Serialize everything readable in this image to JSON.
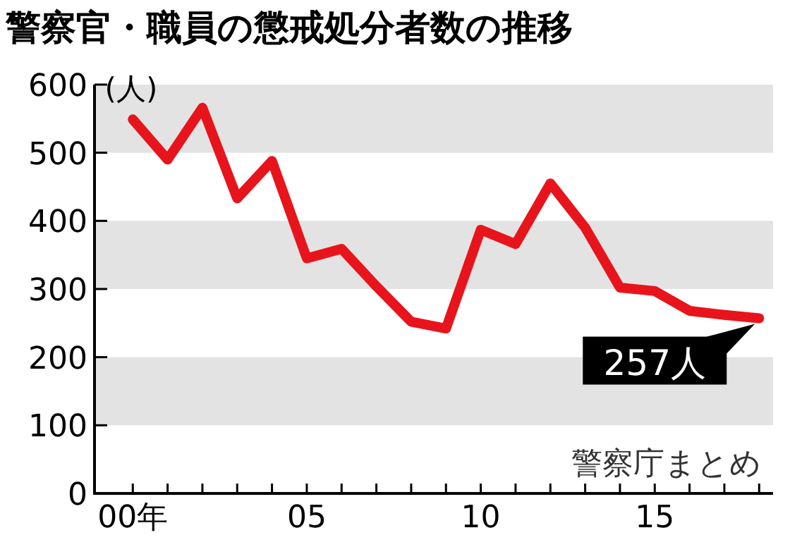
{
  "chart_data": {
    "type": "line",
    "title": "警察官・職員の懲戒処分者数の推移",
    "ylabel": "(人)",
    "x": [
      0,
      1,
      2,
      3,
      4,
      5,
      6,
      7,
      8,
      9,
      10,
      11,
      12,
      13,
      14,
      15,
      16,
      17,
      18
    ],
    "series": [
      {
        "color": "#e8141c",
        "values": [
          549,
          490,
          566,
          433,
          488,
          345,
          359,
          304,
          252,
          242,
          387,
          366,
          455,
          390,
          302,
          297,
          268,
          262,
          257
        ]
      }
    ],
    "xlim": [
      -1.1,
      18.4
    ],
    "xticks": [
      {
        "value": 0,
        "label": "00年"
      },
      {
        "value": 1,
        "label": null
      },
      {
        "value": 2,
        "label": null
      },
      {
        "value": 3,
        "label": null
      },
      {
        "value": 4,
        "label": null
      },
      {
        "value": 5,
        "label": "05"
      },
      {
        "value": 6,
        "label": null
      },
      {
        "value": 7,
        "label": null
      },
      {
        "value": 8,
        "label": null
      },
      {
        "value": 9,
        "label": null
      },
      10,
      {
        "value": 11,
        "label": null
      },
      {
        "value": 12,
        "label": null
      },
      {
        "value": 13,
        "label": null
      },
      {
        "value": 14,
        "label": null
      },
      15,
      {
        "value": 16,
        "label": null
      },
      {
        "value": 17,
        "label": null
      },
      {
        "value": 18,
        "label": null
      }
    ],
    "ylim": [
      0,
      600
    ],
    "yticks": [
      0,
      100,
      200,
      300,
      400,
      500,
      600
    ],
    "bands": [
      {
        "axis": "y",
        "from": 100,
        "to": 200,
        "color": "#e3e3e3"
      },
      {
        "axis": "y",
        "from": 300,
        "to": 400,
        "color": "#e3e3e3"
      },
      {
        "axis": "y",
        "from": 500,
        "to": 600,
        "color": "#e3e3e3"
      }
    ],
    "marker": "none",
    "line_style": "solid",
    "annotations": [
      {
        "text": "257人",
        "x": 18,
        "y": 257
      },
      "警察庁まとめ"
    ]
  }
}
